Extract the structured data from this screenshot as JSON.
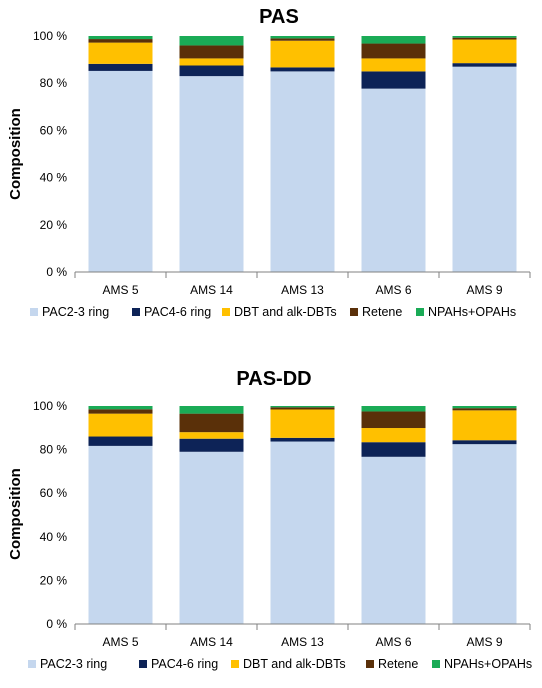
{
  "chart_data": [
    {
      "type": "bar",
      "stacked": true,
      "title": "PAS",
      "xlabel": "",
      "ylabel": "Composition",
      "ylim": [
        0,
        100
      ],
      "yticks": [
        "0 %",
        "20 %",
        "40 %",
        "60 %",
        "80 %",
        "100 %"
      ],
      "categories": [
        "AMS 5",
        "AMS 14",
        "AMS 13",
        "AMS 6",
        "AMS 9"
      ],
      "series": [
        {
          "name": "PAC2-3 ring",
          "color": "#c5d7ee",
          "values": [
            85.2,
            83.0,
            85.0,
            77.7,
            87.0
          ]
        },
        {
          "name": "PAC4-6 ring",
          "color": "#0d2357",
          "values": [
            3.0,
            4.5,
            1.7,
            7.3,
            1.5
          ]
        },
        {
          "name": "DBT and alk-DBTs",
          "color": "#ffc000",
          "values": [
            9.0,
            3.0,
            11.3,
            5.5,
            10.0
          ]
        },
        {
          "name": "Retene",
          "color": "#5a3009",
          "values": [
            1.5,
            5.5,
            1.0,
            6.3,
            0.8
          ]
        },
        {
          "name": "NPAHs+OPAHs",
          "color": "#1aab56",
          "values": [
            1.3,
            4.0,
            1.0,
            3.2,
            0.7
          ]
        }
      ],
      "legend_position": "bottom",
      "grid": false
    },
    {
      "type": "bar",
      "stacked": true,
      "title": "PAS-DD",
      "xlabel": "",
      "ylabel": "Composition",
      "ylim": [
        0,
        100
      ],
      "yticks": [
        "0 %",
        "20 %",
        "40 %",
        "60 %",
        "80 %",
        "100 %"
      ],
      "categories": [
        "AMS 5",
        "AMS 14",
        "AMS 13",
        "AMS 6",
        "AMS 9"
      ],
      "series": [
        {
          "name": "PAC2-3 ring",
          "color": "#c5d7ee",
          "values": [
            81.7,
            79.0,
            83.7,
            76.7,
            82.5
          ]
        },
        {
          "name": "PAC4-6 ring",
          "color": "#0d2357",
          "values": [
            4.3,
            6.0,
            1.7,
            6.7,
            1.8
          ]
        },
        {
          "name": "DBT and alk-DBTs",
          "color": "#ffc000",
          "values": [
            10.5,
            3.0,
            13.0,
            6.5,
            13.7
          ]
        },
        {
          "name": "Retene",
          "color": "#5a3009",
          "values": [
            2.0,
            8.5,
            1.0,
            7.6,
            1.0
          ]
        },
        {
          "name": "NPAHs+OPAHs",
          "color": "#1aab56",
          "values": [
            1.5,
            3.5,
            0.6,
            2.5,
            1.0
          ]
        }
      ],
      "legend_position": "bottom",
      "grid": false
    }
  ]
}
